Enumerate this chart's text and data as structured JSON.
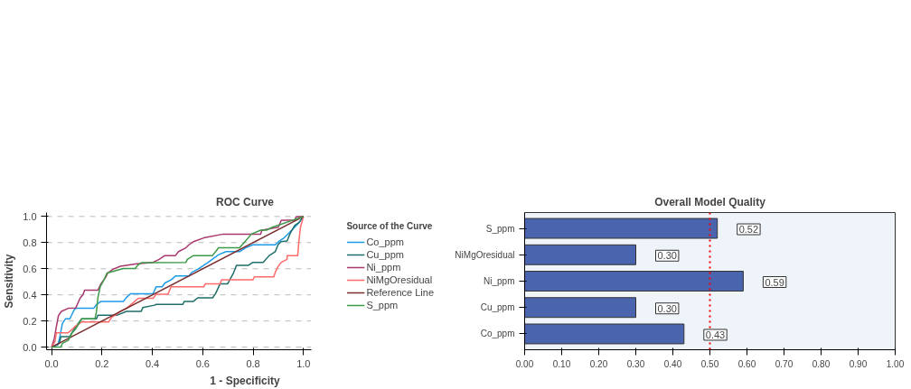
{
  "chart_data": [
    {
      "type": "line",
      "title": "ROC Curve",
      "xlabel": "1 - Specificity",
      "ylabel": "Sensitivity",
      "legend_title": "Source of the Curve",
      "legend": "right",
      "grid": "y",
      "xlim": [
        -0.02,
        1.03
      ],
      "ylim": [
        -0.02,
        1.03
      ],
      "xticks": [
        {
          "value": 0,
          "label": "0.0"
        },
        {
          "value": 0.2,
          "label": "0.2"
        },
        {
          "value": 0.4,
          "label": "0.4"
        },
        {
          "value": 0.6,
          "label": "0.6"
        },
        {
          "value": 0.8,
          "label": "0.8"
        },
        {
          "value": 1,
          "label": "1.0"
        }
      ],
      "yticks": [
        {
          "value": 0,
          "label": "0.0"
        },
        {
          "value": 0.2,
          "label": "0.2"
        },
        {
          "value": 0.4,
          "label": "0.4"
        },
        {
          "value": 0.6,
          "label": "0.6"
        },
        {
          "value": 0.8,
          "label": "0.8"
        },
        {
          "value": 1,
          "label": "1.0"
        }
      ],
      "series": [
        {
          "name": "Co_ppm",
          "color": "#1e9be8",
          "x": [
            0,
            0.025,
            0.031,
            0.043,
            0.055,
            0.072,
            0.078,
            0.09,
            0.096,
            0.167,
            0.179,
            0.196,
            0.285,
            0.297,
            0.314,
            0.403,
            0.415,
            0.439,
            0.45,
            0.474,
            0.492,
            0.545,
            0.557,
            0.58,
            0.622,
            0.651,
            0.663,
            0.693,
            0.746,
            0.77,
            0.799,
            0.888,
            0.905,
            0.923,
            0.935,
            0.959,
            0.982,
            1
          ],
          "values": [
            0,
            0.018,
            0.064,
            0.181,
            0.216,
            0.216,
            0.239,
            0.286,
            0.297,
            0.297,
            0.327,
            0.35,
            0.35,
            0.38,
            0.409,
            0.409,
            0.461,
            0.461,
            0.491,
            0.515,
            0.544,
            0.544,
            0.573,
            0.596,
            0.649,
            0.69,
            0.708,
            0.731,
            0.731,
            0.76,
            0.783,
            0.783,
            0.813,
            0.836,
            0.859,
            0.906,
            0.953,
            1
          ]
        },
        {
          "name": "Cu_ppm",
          "color": "#1f6e6a",
          "x": [
            0,
            0.031,
            0.037,
            0.072,
            0.09,
            0.119,
            0.178,
            0.184,
            0.261,
            0.297,
            0.356,
            0.362,
            0.409,
            0.415,
            0.521,
            0.527,
            0.563,
            0.58,
            0.639,
            0.651,
            0.669,
            0.699,
            0.722,
            0.734,
            0.782,
            0.799,
            0.84,
            0.864,
            0.888,
            0.899,
            0.911,
            0.935,
            0.947,
            0.965,
            0.982,
            1
          ],
          "values": [
            0,
            0.029,
            0.081,
            0.081,
            0.14,
            0.216,
            0.216,
            0.245,
            0.245,
            0.274,
            0.274,
            0.303,
            0.321,
            0.327,
            0.327,
            0.35,
            0.35,
            0.377,
            0.377,
            0.409,
            0.485,
            0.485,
            0.567,
            0.626,
            0.626,
            0.649,
            0.649,
            0.701,
            0.731,
            0.783,
            0.807,
            0.813,
            0.871,
            0.93,
            0.953,
            1
          ]
        },
        {
          "name": "Ni_ppm",
          "color": "#a8386e",
          "x": [
            0,
            0.01,
            0.019,
            0.027,
            0.039,
            0.066,
            0.096,
            0.113,
            0.125,
            0.131,
            0.184,
            0.196,
            0.214,
            0.223,
            0.243,
            0.273,
            0.332,
            0.403,
            0.427,
            0.45,
            0.492,
            0.504,
            0.533,
            0.545,
            0.563,
            0.604,
            0.681,
            0.83,
            0.835,
            0.9,
            0.912,
            0.965,
            0.971,
            1
          ],
          "values": [
            0,
            0.057,
            0.157,
            0.239,
            0.274,
            0.297,
            0.3,
            0.374,
            0.403,
            0.436,
            0.436,
            0.485,
            0.532,
            0.567,
            0.596,
            0.619,
            0.637,
            0.649,
            0.672,
            0.701,
            0.701,
            0.731,
            0.76,
            0.783,
            0.807,
            0.836,
            0.865,
            0.865,
            0.895,
            0.918,
            0.971,
            0.971,
            0.998,
            1
          ]
        },
        {
          "name": "NiMgOresidual",
          "color": "#ff6a6a",
          "x": [
            0,
            0.013,
            0.019,
            0.066,
            0.084,
            0.096,
            0.119,
            0.226,
            0.238,
            0.261,
            0.273,
            0.297,
            0.32,
            0.344,
            0.403,
            0.415,
            0.462,
            0.474,
            0.604,
            0.61,
            0.669,
            0.675,
            0.799,
            0.805,
            0.882,
            0.888,
            0.9,
            0.912,
            0.935,
            0.935,
            0.977,
            0.982,
            0.988,
            1
          ],
          "values": [
            0,
            0.04,
            0.11,
            0.11,
            0.14,
            0.163,
            0.192,
            0.192,
            0.227,
            0.256,
            0.274,
            0.297,
            0.333,
            0.374,
            0.374,
            0.405,
            0.405,
            0.461,
            0.461,
            0.485,
            0.485,
            0.515,
            0.515,
            0.538,
            0.538,
            0.573,
            0.62,
            0.649,
            0.672,
            0.701,
            0.701,
            0.813,
            0.918,
            1
          ]
        },
        {
          "name": "Reference Line",
          "color": "#7a2e2e",
          "x": [
            0,
            1
          ],
          "values": [
            0,
            1
          ]
        },
        {
          "name": "S_ppm",
          "color": "#3c9a48",
          "x": [
            0,
            0.037,
            0.043,
            0.066,
            0.082,
            0.096,
            0.119,
            0.172,
            0.178,
            0.184,
            0.193,
            0.208,
            0.22,
            0.285,
            0.332,
            0.344,
            0.356,
            0.533,
            0.539,
            0.563,
            0.639,
            0.663,
            0.746,
            0.77,
            0.793,
            0.83,
            0.853,
            0.877,
            1
          ],
          "values": [
            0,
            0,
            0.029,
            0.052,
            0.11,
            0.14,
            0.216,
            0.216,
            0.269,
            0.38,
            0.462,
            0.515,
            0.567,
            0.602,
            0.602,
            0.631,
            0.646,
            0.649,
            0.672,
            0.701,
            0.701,
            0.76,
            0.76,
            0.813,
            0.865,
            0.895,
            0.895,
            0.918,
            1
          ]
        }
      ]
    },
    {
      "type": "bar",
      "orientation": "horizontal",
      "title": "Overall Model Quality",
      "categories": [
        "S_ppm",
        "NiMgOresidual",
        "Ni_ppm",
        "Cu_ppm",
        "Co_ppm"
      ],
      "values": [
        0.52,
        0.3,
        0.59,
        0.3,
        0.43
      ],
      "value_labels": [
        "0.52",
        "0.30",
        "0.59",
        "0.30",
        "0.43"
      ],
      "color": "#4a65ad",
      "xlim": [
        0,
        1
      ],
      "xticks": [
        {
          "value": 0,
          "label": "0.00"
        },
        {
          "value": 0.1,
          "label": "0.10"
        },
        {
          "value": 0.2,
          "label": "0.20"
        },
        {
          "value": 0.3,
          "label": "0.30"
        },
        {
          "value": 0.4,
          "label": "0.40"
        },
        {
          "value": 0.5,
          "label": "0.50"
        },
        {
          "value": 0.6,
          "label": "0.60"
        },
        {
          "value": 0.7,
          "label": "0.70"
        },
        {
          "value": 0.8,
          "label": "0.80"
        },
        {
          "value": 0.9,
          "label": "0.90"
        },
        {
          "value": 1,
          "label": "1.00"
        }
      ],
      "ref_lines": [
        {
          "axis": "x",
          "value": 0.5,
          "color": "#ff0000",
          "line_style": "dotted"
        }
      ]
    }
  ]
}
